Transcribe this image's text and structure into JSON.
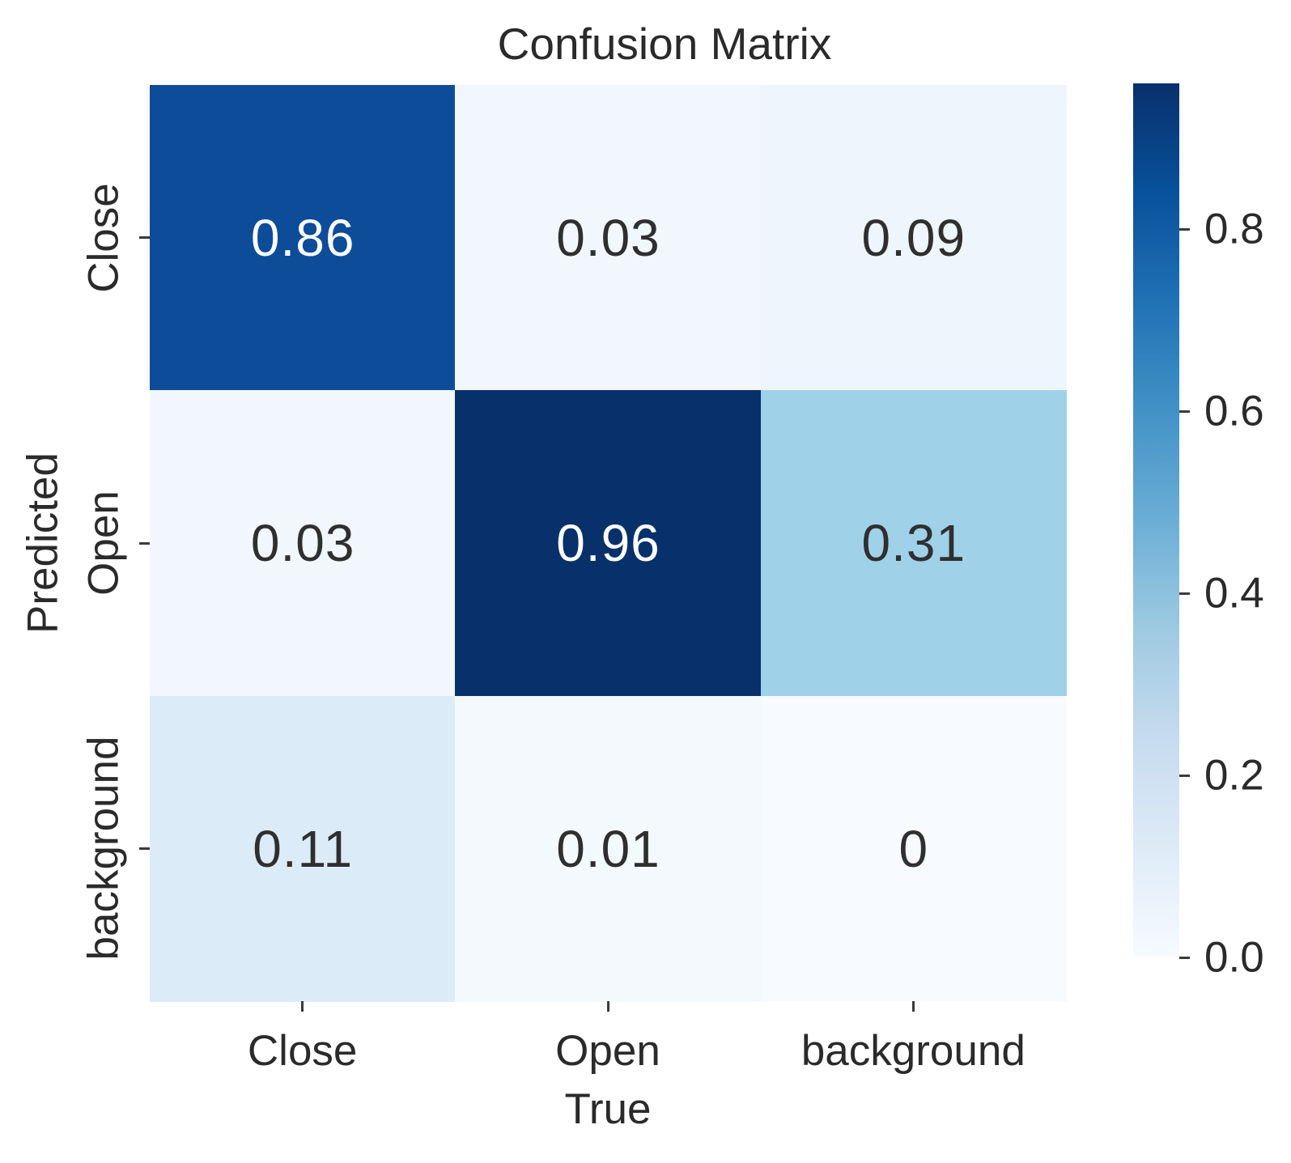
{
  "chart_data": {
    "type": "heatmap",
    "title": "Confusion Matrix",
    "xlabel": "True",
    "ylabel": "Predicted",
    "x_categories": [
      "Close",
      "Open",
      "background"
    ],
    "y_categories": [
      "Close",
      "Open",
      "background"
    ],
    "values": [
      [
        0.86,
        0.03,
        0.09
      ],
      [
        0.03,
        0.96,
        0.31
      ],
      [
        0.11,
        0.01,
        0
      ]
    ],
    "cell_labels": [
      [
        "0.86",
        "0.03",
        "0.09"
      ],
      [
        "0.03",
        "0.96",
        "0.31"
      ],
      [
        "0.11",
        "0.01",
        "0"
      ]
    ],
    "colormap": "Blues",
    "vmin": 0.0,
    "vmax": 0.96,
    "grid": false,
    "legend_position": "colorbar-right",
    "colorbar_tick_labels": [
      "0.0",
      "0.2",
      "0.4",
      "0.6",
      "0.8"
    ],
    "colorbar_tick_values": [
      0.0,
      0.2,
      0.4,
      0.6,
      0.8
    ]
  },
  "colors": {
    "background": "#ffffff",
    "text": "#2a2a2a",
    "tick": "#3a3a3a",
    "cell_text_dark": "#2f2f2f",
    "cell_text_light": "#ffffff",
    "cell_fill": [
      [
        "#0d4c99",
        "#f1f7fd",
        "#eef5fc"
      ],
      [
        "#f1f7fd",
        "#08306b",
        "#9fd1e8"
      ],
      [
        "#dcebf8",
        "#f4f9fe",
        "#f7fbff"
      ]
    ],
    "cell_text": [
      [
        "#ffffff",
        "#2f2f2f",
        "#2f2f2f"
      ],
      [
        "#2f2f2f",
        "#ffffff",
        "#2f2f2f"
      ],
      [
        "#2f2f2f",
        "#2f2f2f",
        "#2f2f2f"
      ]
    ],
    "colorbar_stops_bottom_to_top": [
      "#f7fbff",
      "#deebf7",
      "#c6dbef",
      "#9ecae1",
      "#6baed6",
      "#4292c6",
      "#2171b5",
      "#08519c",
      "#08306b"
    ]
  }
}
